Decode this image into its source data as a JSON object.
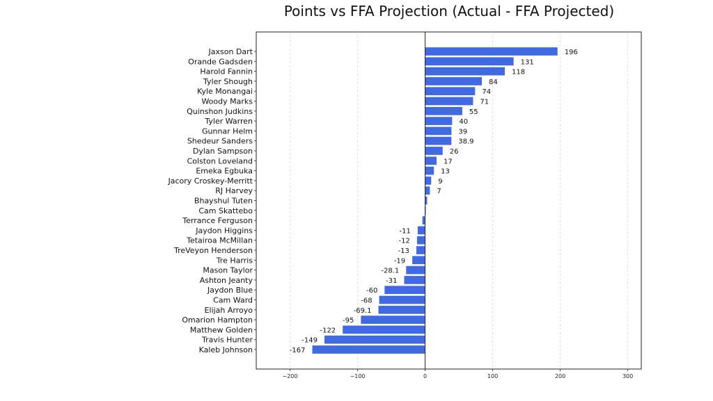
{
  "chart_data": {
    "type": "bar",
    "orientation": "horizontal",
    "title": "Points vs FFA Projection (Actual - FFA Projected)",
    "xlabel": "",
    "ylabel": "",
    "xlim": [
      -250,
      320
    ],
    "xticks": [
      -200,
      -100,
      0,
      100,
      200,
      300
    ],
    "xtick_labels": [
      "−200",
      "−100",
      "0",
      "100",
      "200",
      "300"
    ],
    "grid": "vertical dashed",
    "bar_color": "#4169e1",
    "categories": [
      "Jaxson Dart",
      "Orande Gadsden",
      "Harold Fannin",
      "Tyler Shough",
      "Kyle Monangai",
      "Woody Marks",
      "Quinshon Judkins",
      "Tyler Warren",
      "Gunnar Helm",
      "Shedeur Sanders",
      "Dylan Sampson",
      "Colston Loveland",
      "Emeka Egbuka",
      "Jacory Croskey-Merritt",
      "RJ Harvey",
      "Bhayshul Tuten",
      "Cam Skattebo",
      "Terrance Ferguson",
      "Jaydon Higgins",
      "Tetairoa McMillan",
      "TreVeyon Henderson",
      "Tre Harris",
      "Mason Taylor",
      "Ashton Jeanty",
      "Jaydon Blue",
      "Cam Ward",
      "Elijah Arroyo",
      "Omarion Hampton",
      "Matthew Golden",
      "Travis Hunter",
      "Kaleb Johnson"
    ],
    "values": [
      196,
      131,
      118,
      84,
      74,
      71,
      55,
      40,
      39,
      38.9,
      26,
      17,
      13,
      9,
      7,
      3,
      1,
      -4,
      -11,
      -12,
      -13,
      -19,
      -28.1,
      -31,
      -60,
      -68,
      -69.1,
      -95,
      -122,
      -149,
      -167
    ],
    "data_labels": [
      "196",
      "131",
      "118",
      "84",
      "74",
      "71",
      "55",
      "40",
      "39",
      "38.9",
      "26",
      "17",
      "13",
      "9",
      "7",
      "",
      "",
      "",
      "-11",
      "-12",
      "-13",
      "-19",
      "-28.1",
      "-31",
      "-60",
      "-68",
      "-69.1",
      "-95",
      "-122",
      "-149",
      "-167"
    ]
  }
}
